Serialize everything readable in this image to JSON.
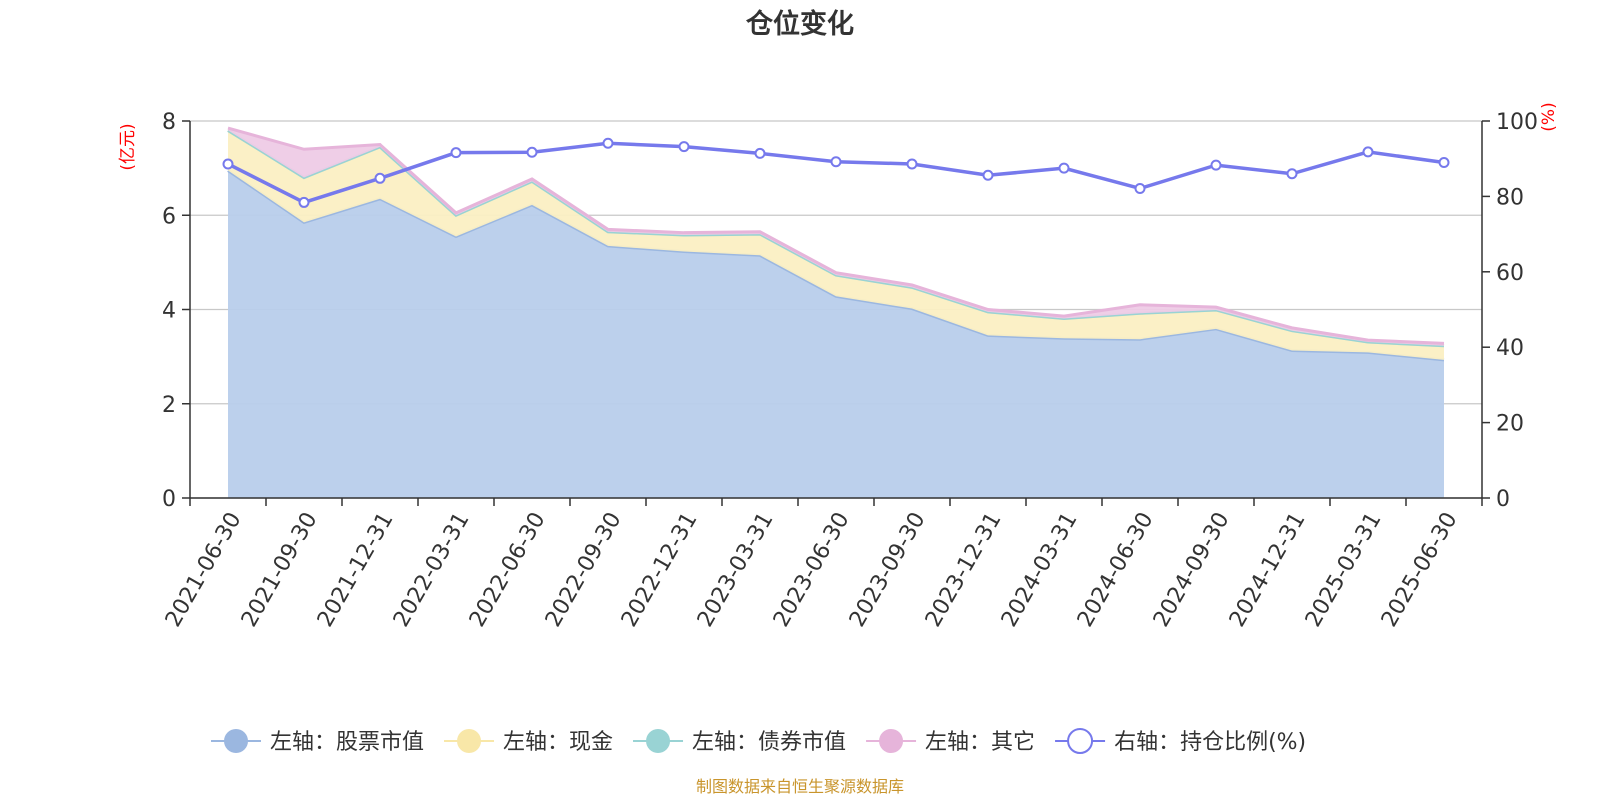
{
  "chart_data": {
    "type": "area",
    "title": "仓位变化",
    "left_axis_unit": "(亿元)",
    "right_axis_unit": "(%)",
    "source_text": "制图数据来自恒生聚源数据库",
    "x": [
      "2021-06-30",
      "2021-09-30",
      "2021-12-31",
      "2022-03-31",
      "2022-06-30",
      "2022-09-30",
      "2022-12-31",
      "2023-03-31",
      "2023-06-30",
      "2023-09-30",
      "2023-12-31",
      "2024-03-31",
      "2024-06-30",
      "2024-09-30",
      "2024-12-31",
      "2025-03-31",
      "2025-06-30"
    ],
    "y_left": {
      "min": 0,
      "max": 8,
      "ticks": [
        "0",
        "2",
        "4",
        "6",
        "8"
      ]
    },
    "y_right": {
      "min": 0,
      "max": 100,
      "ticks": [
        "0",
        "20",
        "40",
        "60",
        "80",
        "100"
      ]
    },
    "grid": true,
    "legend_position": "bottom",
    "series": [
      {
        "name": "左轴：股票市值",
        "axis": "left",
        "kind": "stacked-area",
        "color": "#9bb7e0",
        "fill": "#b8cdeb",
        "values": [
          6.95,
          5.85,
          6.35,
          5.55,
          6.22,
          5.35,
          5.23,
          5.15,
          4.28,
          4.02,
          3.45,
          3.39,
          3.37,
          3.59,
          3.13,
          3.09,
          2.93
        ]
      },
      {
        "name": "左轴：现金",
        "axis": "left",
        "kind": "stacked-area",
        "color": "#f8e7a8",
        "fill": "#fbefc3",
        "values": [
          0.85,
          0.95,
          1.1,
          0.45,
          0.5,
          0.3,
          0.35,
          0.45,
          0.45,
          0.45,
          0.5,
          0.42,
          0.55,
          0.4,
          0.42,
          0.22,
          0.3
        ]
      },
      {
        "name": "左轴：债券市值",
        "axis": "left",
        "kind": "stacked-area",
        "color": "#99d3d4",
        "fill": "#c2e5e5",
        "values": [
          0,
          0,
          0,
          0,
          0,
          0,
          0,
          0,
          0,
          0,
          0,
          0,
          0,
          0,
          0,
          0,
          0
        ]
      },
      {
        "name": "左轴：其它",
        "axis": "left",
        "kind": "stacked-area",
        "color": "#e6b4da",
        "fill": "#eecbe6",
        "values": [
          0.05,
          0.6,
          0.05,
          0.05,
          0.05,
          0.05,
          0.05,
          0.05,
          0.05,
          0.05,
          0.05,
          0.05,
          0.18,
          0.06,
          0.06,
          0.04,
          0.05
        ]
      },
      {
        "name": "右轴：持仓比例(%)",
        "axis": "right",
        "kind": "line",
        "color": "#7679ec",
        "values": [
          88.6,
          78.4,
          84.8,
          91.6,
          91.7,
          94.1,
          93.2,
          91.4,
          89.2,
          88.6,
          85.6,
          87.5,
          82.1,
          88.3,
          86.0,
          91.8,
          89.0
        ]
      }
    ]
  }
}
